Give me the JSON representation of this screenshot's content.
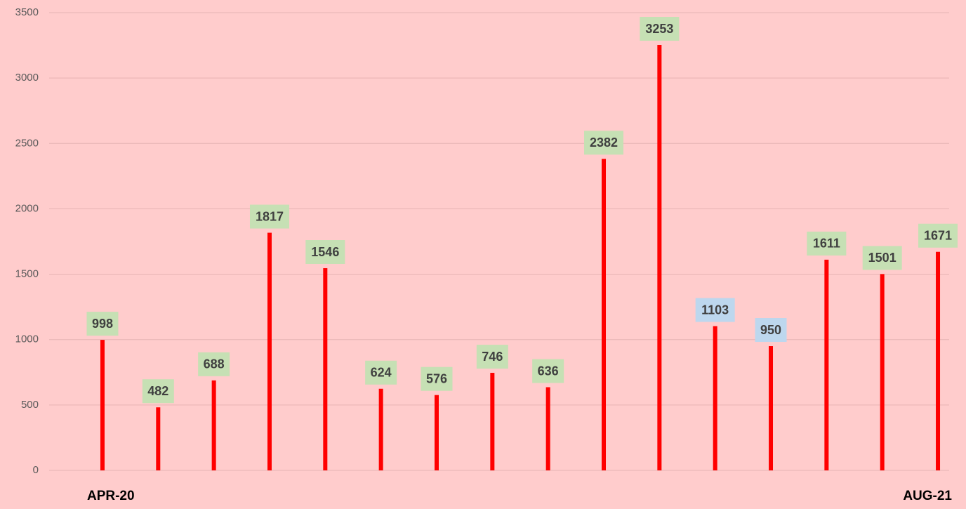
{
  "chart_data": {
    "type": "bar",
    "categories": [
      "APR-20",
      null,
      null,
      null,
      null,
      null,
      null,
      null,
      null,
      null,
      null,
      null,
      null,
      null,
      null,
      "AUG-21"
    ],
    "values": [
      998,
      482,
      688,
      1817,
      1546,
      624,
      576,
      746,
      636,
      2382,
      3253,
      1103,
      950,
      1611,
      1501,
      1671
    ],
    "color": "#ff0000",
    "label_colors": [
      "#c6e0b4",
      "#c6e0b4",
      "#c6e0b4",
      "#c6e0b4",
      "#c6e0b4",
      "#c6e0b4",
      "#c6e0b4",
      "#c6e0b4",
      "#c6e0b4",
      "#c6e0b4",
      "#c6e0b4",
      "#bdd7ee",
      "#bdd7ee",
      "#c6e0b4",
      "#c6e0b4",
      "#c6e0b4"
    ],
    "ylim": [
      0,
      3500
    ],
    "yticks": [
      0,
      500,
      1000,
      1500,
      2000,
      2500,
      3000,
      3500
    ],
    "grid": true
  }
}
